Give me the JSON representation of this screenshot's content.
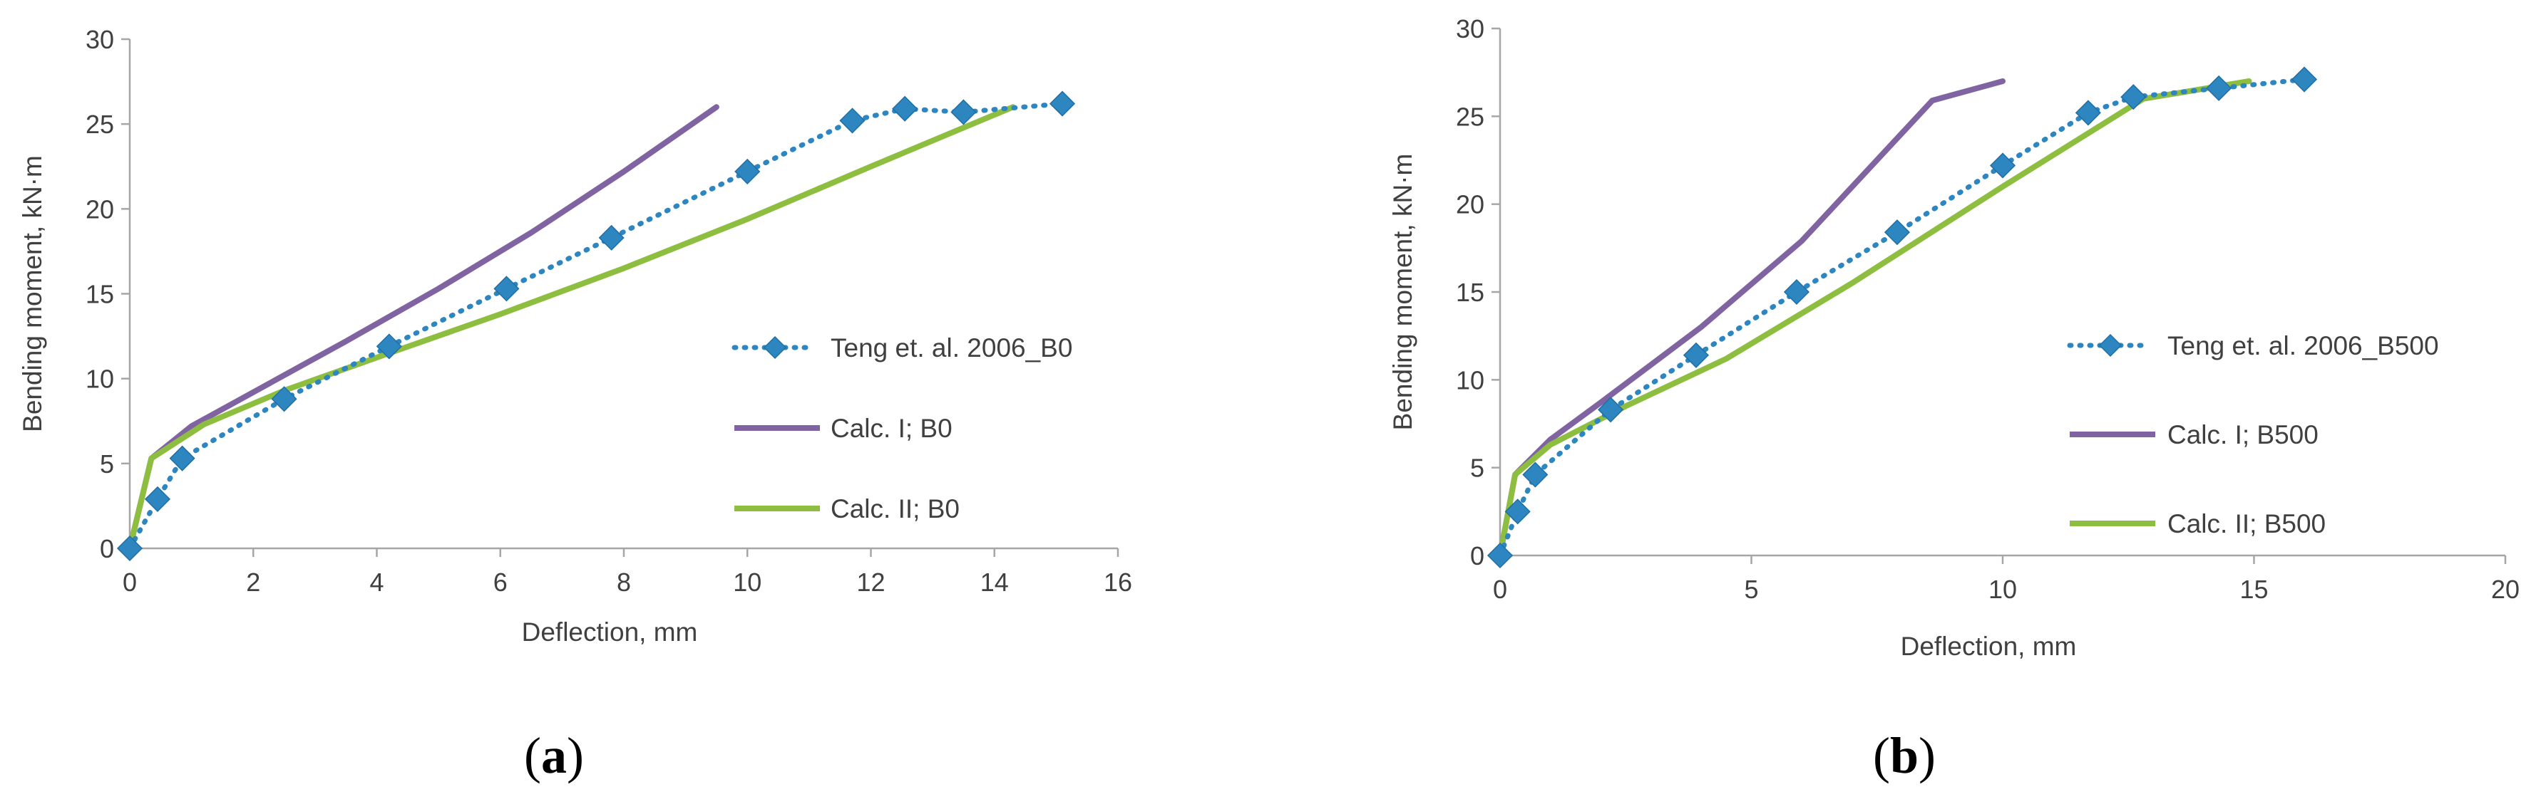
{
  "chart_data": [
    {
      "id": "a",
      "type": "line",
      "panel_label": "a",
      "xlabel": "Deflection, mm",
      "ylabel": "Bending moment, kN·m",
      "xlim": [
        0,
        16
      ],
      "ylim": [
        0,
        30
      ],
      "xticks": [
        0,
        2,
        4,
        6,
        8,
        10,
        12,
        14,
        16
      ],
      "yticks": [
        0,
        5,
        10,
        15,
        20,
        25,
        30
      ],
      "grid": false,
      "legend_position": "right",
      "series": [
        {
          "name": "Teng et. al. 2006_B0",
          "style": "dotted-diamond",
          "color": "#2E86C1",
          "x": [
            0,
            0.45,
            0.85,
            2.5,
            4.2,
            6.1,
            7.8,
            10.0,
            11.7,
            12.55,
            13.5,
            15.1
          ],
          "y": [
            0,
            2.9,
            5.3,
            8.8,
            11.9,
            15.3,
            18.3,
            22.2,
            25.2,
            25.9,
            25.7,
            26.2
          ]
        },
        {
          "name": "Calc. I; B0",
          "style": "solid",
          "color": "#8064A2",
          "x": [
            0,
            0.35,
            1.0,
            2.0,
            3.5,
            5.0,
            6.5,
            8.0,
            9.5
          ],
          "y": [
            0,
            5.3,
            7.2,
            9.2,
            12.2,
            15.3,
            18.6,
            22.2,
            26.0
          ]
        },
        {
          "name": "Calc. II; B0",
          "style": "solid",
          "color": "#8DBE3F",
          "x": [
            0,
            0.35,
            1.2,
            2.5,
            4.2,
            6.0,
            8.0,
            10.0,
            12.0,
            14.3
          ],
          "y": [
            0,
            5.3,
            7.3,
            9.3,
            11.5,
            13.8,
            16.5,
            19.4,
            22.5,
            26.0
          ]
        }
      ]
    },
    {
      "id": "b",
      "type": "line",
      "panel_label": "b",
      "xlabel": "Deflection, mm",
      "ylabel": "Bending moment, kN·m",
      "xlim": [
        0,
        20
      ],
      "ylim": [
        0,
        30
      ],
      "xticks": [
        0,
        5,
        10,
        15,
        20
      ],
      "yticks": [
        0,
        5,
        10,
        15,
        20,
        25,
        30
      ],
      "grid": false,
      "legend_position": "right",
      "series": [
        {
          "name": "Teng et. al. 2006_B500",
          "style": "dotted-diamond",
          "color": "#2E86C1",
          "x": [
            0,
            0.35,
            0.7,
            2.2,
            3.9,
            5.9,
            7.9,
            10.0,
            11.7,
            12.6,
            14.3,
            16.0
          ],
          "y": [
            0,
            2.5,
            4.6,
            8.3,
            11.4,
            15.0,
            18.4,
            22.2,
            25.2,
            26.1,
            26.6,
            27.1
          ]
        },
        {
          "name": "Calc. I; B500",
          "style": "solid",
          "color": "#8064A2",
          "x": [
            0,
            0.3,
            1.0,
            2.0,
            4.0,
            6.0,
            8.6,
            10.0
          ],
          "y": [
            0,
            4.6,
            6.6,
            8.7,
            13.0,
            17.9,
            25.9,
            27.0
          ]
        },
        {
          "name": "Calc. II; B500",
          "style": "solid",
          "color": "#8DBE3F",
          "x": [
            0,
            0.3,
            1.0,
            2.5,
            4.5,
            7.0,
            10.0,
            12.8,
            14.9
          ],
          "y": [
            0,
            4.6,
            6.3,
            8.5,
            11.2,
            15.5,
            21.0,
            26.0,
            27.0
          ]
        }
      ]
    }
  ]
}
